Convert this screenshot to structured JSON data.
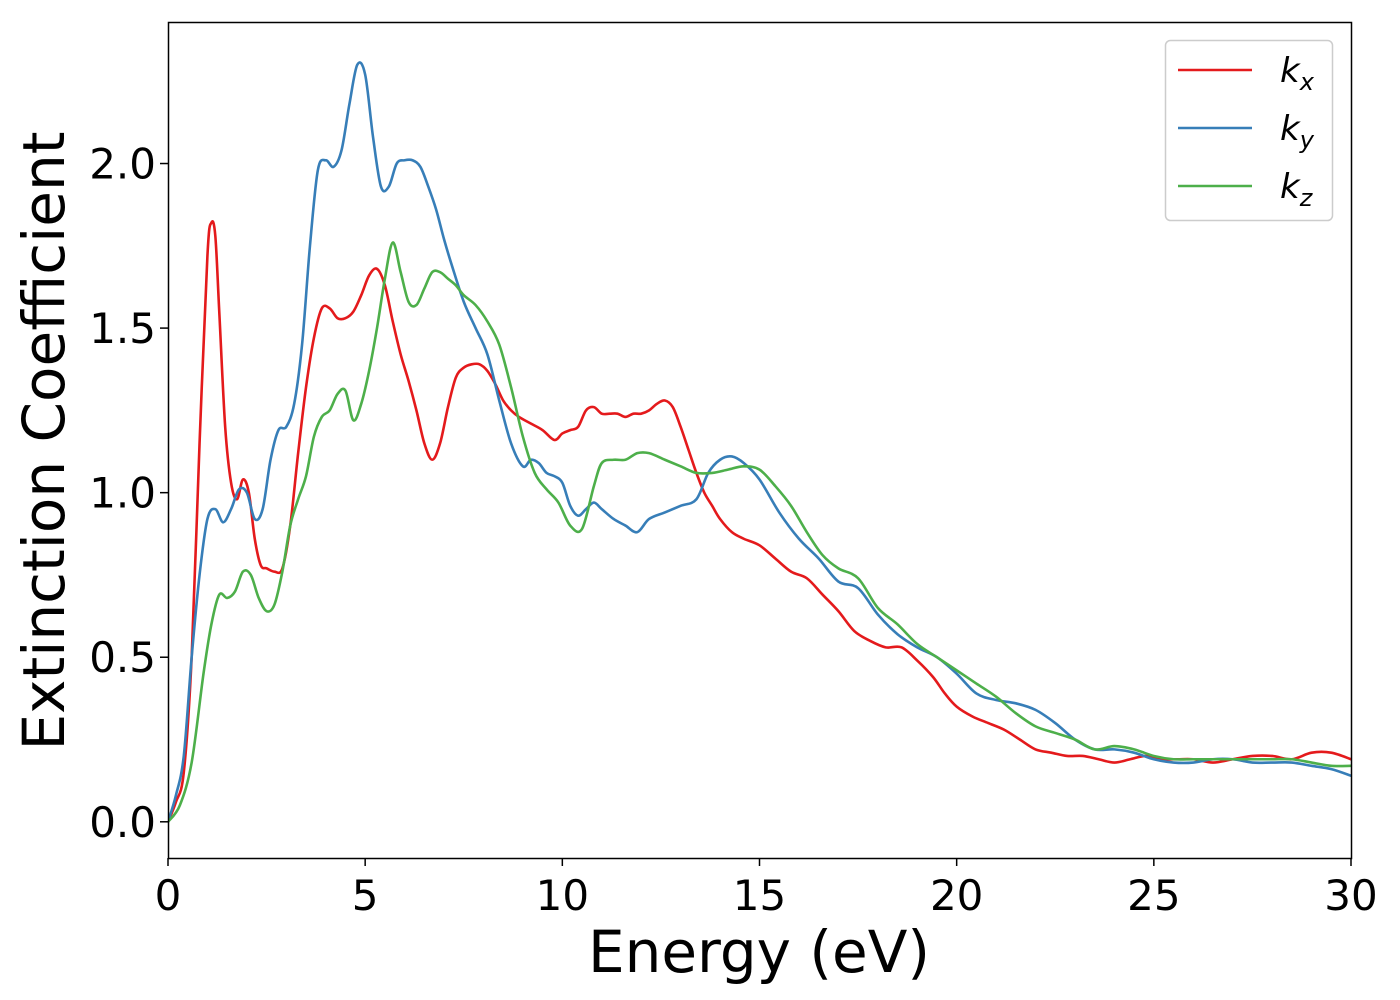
{
  "chart_data": {
    "type": "line",
    "title": "",
    "xlabel": "Energy (eV)",
    "ylabel": "Extinction Coefficient",
    "xlim": [
      0,
      30
    ],
    "ylim": [
      -0.11,
      2.43
    ],
    "xticks": [
      0,
      5,
      10,
      15,
      20,
      25,
      30
    ],
    "xtick_labels": [
      "0",
      "5",
      "10",
      "15",
      "20",
      "25",
      "30"
    ],
    "yticks": [
      0.0,
      0.5,
      1.0,
      1.5,
      2.0
    ],
    "ytick_labels": [
      "0.0",
      "0.5",
      "1.0",
      "1.5",
      "2.0"
    ],
    "grid": false,
    "legend_position": "top-right",
    "series": [
      {
        "name": "k",
        "subscript": "x",
        "color": "#e41a1c",
        "x": [
          0,
          0.2,
          0.4,
          0.6,
          0.8,
          1.0,
          1.1,
          1.2,
          1.3,
          1.45,
          1.6,
          1.75,
          1.9,
          2.05,
          2.2,
          2.35,
          2.5,
          2.7,
          2.9,
          3.1,
          3.3,
          3.5,
          3.7,
          3.9,
          4.1,
          4.3,
          4.5,
          4.7,
          4.9,
          5.1,
          5.3,
          5.5,
          5.7,
          5.9,
          6.1,
          6.3,
          6.5,
          6.7,
          6.9,
          7.1,
          7.3,
          7.5,
          7.7,
          7.9,
          8.1,
          8.3,
          8.5,
          8.7,
          8.9,
          9.2,
          9.5,
          9.8,
          10.0,
          10.2,
          10.4,
          10.6,
          10.8,
          11.0,
          11.2,
          11.4,
          11.6,
          11.8,
          12.0,
          12.2,
          12.4,
          12.6,
          12.8,
          13.0,
          13.2,
          13.4,
          13.6,
          13.8,
          14.0,
          14.3,
          14.6,
          15.0,
          15.4,
          15.8,
          16.2,
          16.6,
          17.0,
          17.4,
          17.8,
          18.2,
          18.6,
          19.0,
          19.4,
          19.7,
          20.0,
          20.4,
          20.8,
          21.2,
          21.6,
          22.0,
          22.4,
          22.8,
          23.2,
          23.6,
          24.0,
          24.4,
          24.8,
          25.2,
          25.6,
          26.0,
          26.5,
          27.0,
          27.5,
          28.0,
          28.5,
          29.0,
          29.5,
          30.0
        ],
        "values": [
          0.0,
          0.06,
          0.15,
          0.5,
          1.15,
          1.72,
          1.82,
          1.78,
          1.55,
          1.2,
          1.03,
          0.98,
          1.04,
          1.0,
          0.86,
          0.78,
          0.77,
          0.76,
          0.77,
          0.9,
          1.12,
          1.32,
          1.47,
          1.56,
          1.56,
          1.53,
          1.53,
          1.55,
          1.6,
          1.66,
          1.68,
          1.63,
          1.52,
          1.42,
          1.34,
          1.25,
          1.15,
          1.1,
          1.15,
          1.26,
          1.35,
          1.38,
          1.39,
          1.39,
          1.37,
          1.33,
          1.28,
          1.25,
          1.23,
          1.21,
          1.19,
          1.16,
          1.18,
          1.19,
          1.2,
          1.25,
          1.26,
          1.24,
          1.24,
          1.24,
          1.23,
          1.24,
          1.24,
          1.25,
          1.27,
          1.28,
          1.26,
          1.2,
          1.13,
          1.06,
          1.0,
          0.96,
          0.92,
          0.88,
          0.86,
          0.84,
          0.8,
          0.76,
          0.74,
          0.69,
          0.64,
          0.58,
          0.55,
          0.53,
          0.53,
          0.49,
          0.44,
          0.39,
          0.35,
          0.32,
          0.3,
          0.28,
          0.25,
          0.22,
          0.21,
          0.2,
          0.2,
          0.19,
          0.18,
          0.19,
          0.2,
          0.19,
          0.19,
          0.19,
          0.18,
          0.19,
          0.2,
          0.2,
          0.19,
          0.21,
          0.21,
          0.19
        ]
      },
      {
        "name": "k",
        "subscript": "y",
        "color": "#377eb8",
        "x": [
          0,
          0.2,
          0.4,
          0.6,
          0.8,
          1.0,
          1.2,
          1.4,
          1.6,
          1.8,
          2.0,
          2.2,
          2.4,
          2.6,
          2.8,
          3.0,
          3.2,
          3.4,
          3.6,
          3.8,
          4.0,
          4.2,
          4.4,
          4.6,
          4.8,
          5.0,
          5.2,
          5.4,
          5.6,
          5.8,
          6.0,
          6.2,
          6.4,
          6.6,
          6.8,
          7.0,
          7.2,
          7.5,
          7.8,
          8.1,
          8.4,
          8.7,
          9.0,
          9.2,
          9.4,
          9.6,
          9.8,
          10.0,
          10.2,
          10.4,
          10.6,
          10.8,
          11.0,
          11.3,
          11.6,
          11.9,
          12.2,
          12.6,
          13.0,
          13.4,
          13.7,
          14.0,
          14.3,
          14.6,
          15.0,
          15.5,
          16.0,
          16.5,
          17.0,
          17.5,
          18.0,
          18.5,
          19.0,
          19.5,
          20.0,
          20.5,
          21.0,
          21.5,
          22.0,
          22.5,
          23.0,
          23.5,
          24.0,
          24.5,
          25.0,
          25.5,
          26.0,
          26.5,
          27.0,
          27.5,
          28.0,
          28.5,
          29.0,
          29.5,
          30.0
        ],
        "values": [
          0.0,
          0.08,
          0.2,
          0.5,
          0.75,
          0.92,
          0.95,
          0.91,
          0.95,
          1.01,
          1.0,
          0.92,
          0.95,
          1.1,
          1.19,
          1.2,
          1.27,
          1.45,
          1.75,
          1.98,
          2.01,
          1.99,
          2.04,
          2.18,
          2.3,
          2.27,
          2.08,
          1.93,
          1.93,
          2.0,
          2.01,
          2.01,
          1.99,
          1.93,
          1.86,
          1.77,
          1.69,
          1.58,
          1.5,
          1.42,
          1.28,
          1.15,
          1.08,
          1.1,
          1.09,
          1.06,
          1.05,
          1.03,
          0.96,
          0.93,
          0.95,
          0.97,
          0.95,
          0.92,
          0.9,
          0.88,
          0.92,
          0.94,
          0.96,
          0.98,
          1.06,
          1.1,
          1.11,
          1.09,
          1.04,
          0.94,
          0.86,
          0.8,
          0.73,
          0.71,
          0.63,
          0.57,
          0.53,
          0.5,
          0.45,
          0.39,
          0.37,
          0.36,
          0.34,
          0.3,
          0.25,
          0.22,
          0.22,
          0.21,
          0.19,
          0.18,
          0.18,
          0.19,
          0.19,
          0.18,
          0.18,
          0.18,
          0.17,
          0.16,
          0.14
        ]
      },
      {
        "name": "k",
        "subscript": "z",
        "color": "#4daf4a",
        "x": [
          0,
          0.3,
          0.6,
          0.9,
          1.1,
          1.3,
          1.5,
          1.7,
          1.9,
          2.1,
          2.3,
          2.5,
          2.7,
          2.9,
          3.1,
          3.3,
          3.5,
          3.7,
          3.9,
          4.1,
          4.3,
          4.5,
          4.7,
          4.9,
          5.1,
          5.3,
          5.5,
          5.7,
          5.9,
          6.1,
          6.3,
          6.5,
          6.7,
          6.9,
          7.1,
          7.3,
          7.5,
          7.8,
          8.1,
          8.4,
          8.7,
          9.0,
          9.3,
          9.6,
          9.9,
          10.2,
          10.5,
          10.8,
          11.0,
          11.3,
          11.6,
          11.9,
          12.2,
          12.6,
          13.0,
          13.4,
          13.8,
          14.2,
          14.6,
          15.0,
          15.4,
          15.8,
          16.2,
          16.6,
          17.0,
          17.5,
          18.0,
          18.5,
          19.0,
          19.5,
          20.0,
          20.5,
          21.0,
          21.5,
          22.0,
          22.5,
          23.0,
          23.5,
          24.0,
          24.5,
          25.0,
          25.5,
          26.0,
          26.5,
          27.0,
          27.5,
          28.0,
          28.5,
          29.0,
          29.5,
          30.0
        ],
        "values": [
          0.0,
          0.05,
          0.18,
          0.45,
          0.6,
          0.69,
          0.68,
          0.7,
          0.76,
          0.75,
          0.68,
          0.64,
          0.66,
          0.76,
          0.9,
          0.98,
          1.05,
          1.17,
          1.23,
          1.25,
          1.3,
          1.31,
          1.22,
          1.27,
          1.37,
          1.5,
          1.65,
          1.76,
          1.67,
          1.58,
          1.57,
          1.62,
          1.67,
          1.67,
          1.65,
          1.63,
          1.6,
          1.57,
          1.52,
          1.45,
          1.32,
          1.17,
          1.06,
          1.01,
          0.97,
          0.9,
          0.89,
          1.02,
          1.09,
          1.1,
          1.1,
          1.12,
          1.12,
          1.1,
          1.08,
          1.06,
          1.06,
          1.07,
          1.08,
          1.07,
          1.02,
          0.96,
          0.88,
          0.81,
          0.77,
          0.74,
          0.65,
          0.6,
          0.54,
          0.5,
          0.46,
          0.42,
          0.38,
          0.33,
          0.29,
          0.27,
          0.25,
          0.22,
          0.23,
          0.22,
          0.2,
          0.19,
          0.19,
          0.19,
          0.19,
          0.19,
          0.19,
          0.19,
          0.18,
          0.17,
          0.17
        ]
      }
    ]
  }
}
